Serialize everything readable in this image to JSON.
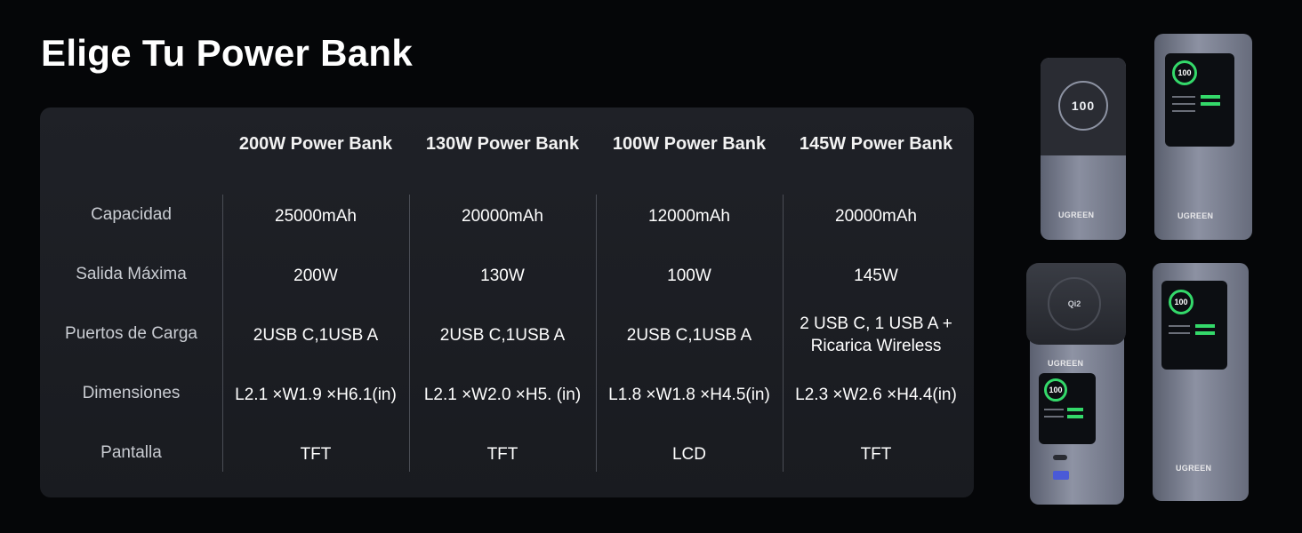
{
  "title": "Elige Tu Power Bank",
  "table": {
    "columns": [
      "200W Power Bank",
      "130W Power Bank",
      "100W Power Bank",
      "145W Power Bank"
    ],
    "rows": [
      {
        "label": "Capacidad",
        "values": [
          "25000mAh",
          "20000mAh",
          "12000mAh",
          "20000mAh"
        ]
      },
      {
        "label": "Salida Máxima",
        "values": [
          "200W",
          "130W",
          "100W",
          "145W"
        ]
      },
      {
        "label": "Puertos de Carga",
        "values": [
          "2USB C,1USB A",
          "2USB C,1USB A",
          "2USB C,1USB A",
          "2 USB C, 1 USB A +\nRicarica Wireless"
        ]
      },
      {
        "label": "Dimensiones",
        "values": [
          "L2.1 ×W1.9 ×H6.1(in)",
          "L2.1 ×W2.0 ×H5. (in)",
          "L1.8 ×W1.8 ×H4.5(in)",
          "L2.3 ×W2.6 ×H4.4(in)"
        ]
      },
      {
        "label": "Pantalla",
        "values": [
          "TFT",
          "TFT",
          "LCD",
          "TFT"
        ]
      }
    ]
  },
  "products": {
    "brand": "UGREEN",
    "display_percent": "100",
    "digital_readout": "100",
    "wireless_logo": "Qi2",
    "accent_color": "#34d96a"
  }
}
